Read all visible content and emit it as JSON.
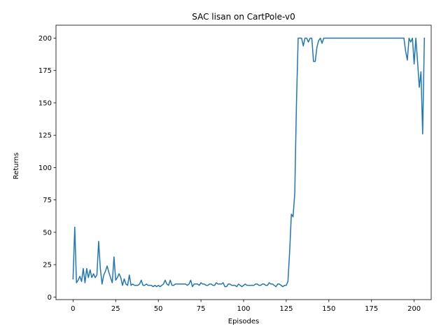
{
  "chart_data": {
    "type": "line",
    "title": "SAC lisan on CartPole-v0",
    "xlabel": "Episodes",
    "ylabel": "Returns",
    "xlim": [
      -10,
      210
    ],
    "ylim": [
      -2,
      210
    ],
    "xticks": [
      0,
      25,
      50,
      75,
      100,
      125,
      150,
      175,
      200
    ],
    "yticks": [
      0,
      25,
      50,
      75,
      100,
      125,
      150,
      175,
      200
    ],
    "grid": false,
    "line_color": "#1f77b4",
    "series": [
      {
        "values": [
          14,
          54,
          11,
          13,
          16,
          12,
          22,
          11,
          22,
          15,
          21,
          15,
          18,
          15,
          17,
          43,
          22,
          10,
          17,
          20,
          24,
          19,
          15,
          11,
          31,
          13,
          15,
          18,
          15,
          9,
          14,
          10,
          9,
          17,
          9,
          10,
          9,
          9,
          9,
          10,
          13,
          9,
          9,
          10,
          9,
          9,
          9,
          8,
          9,
          8,
          9,
          8,
          9,
          10,
          13,
          10,
          9,
          13,
          9,
          9,
          10,
          10,
          10,
          10,
          10,
          10,
          10,
          9,
          10,
          13,
          8,
          10,
          10,
          10,
          9,
          11,
          10,
          10,
          9,
          9,
          10,
          10,
          9,
          9,
          11,
          10,
          10,
          10,
          11,
          8,
          8,
          10,
          10,
          9,
          9,
          9,
          8,
          10,
          9,
          8,
          9,
          10,
          9,
          9,
          9,
          9,
          9,
          10,
          10,
          9,
          9,
          10,
          10,
          9,
          9,
          11,
          10,
          10,
          9,
          8,
          10,
          10,
          9,
          8,
          9,
          9,
          12,
          35,
          64,
          62,
          80,
          150,
          200,
          200,
          200,
          194,
          200,
          200,
          197,
          200,
          200,
          182,
          182,
          193,
          198,
          200,
          196,
          200,
          200,
          200,
          200,
          200,
          200,
          200,
          200,
          200,
          200,
          200,
          200,
          200,
          200,
          200,
          200,
          200,
          200,
          200,
          200,
          200,
          200,
          200,
          200,
          200,
          200,
          200,
          200,
          200,
          200,
          200,
          200,
          200,
          200,
          200,
          200,
          200,
          200,
          200,
          200,
          200,
          200,
          200,
          200,
          200,
          200,
          200,
          200,
          190,
          183,
          200,
          197,
          200,
          180,
          200,
          182,
          162,
          174,
          126,
          200
        ]
      }
    ]
  }
}
